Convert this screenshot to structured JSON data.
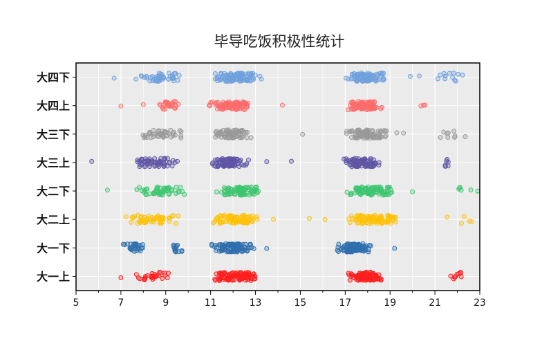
{
  "chart_data": {
    "type": "scatter",
    "title": "毕导吃饭积极性统计",
    "xlabel": "",
    "ylabel": "",
    "xlim": [
      5,
      23
    ],
    "x_ticks": [
      5,
      7,
      9,
      11,
      13,
      15,
      17,
      19,
      21,
      23
    ],
    "grid": true,
    "legend": "none",
    "categories": [
      "大一上",
      "大一下",
      "大二上",
      "大二下",
      "大三上",
      "大三下",
      "大四上",
      "大四下"
    ],
    "series": [
      {
        "category": "大一上",
        "color": "#ff1f1f",
        "clusters": [
          {
            "lo": 7.4,
            "hi": 9.4,
            "n": 28
          },
          {
            "lo": 11.1,
            "hi": 13.2,
            "n": 110
          },
          {
            "lo": 17.0,
            "hi": 18.7,
            "n": 95
          },
          {
            "lo": 21.7,
            "hi": 22.5,
            "n": 9
          }
        ]
      },
      {
        "category": "大一下",
        "color": "#2f6fad",
        "clusters": [
          {
            "lo": 7.1,
            "hi": 8.2,
            "n": 28
          },
          {
            "lo": 9.2,
            "hi": 9.8,
            "n": 14
          },
          {
            "lo": 10.9,
            "hi": 13.0,
            "n": 100
          },
          {
            "lo": 16.5,
            "hi": 18.3,
            "n": 90
          }
        ]
      },
      {
        "category": "大二上",
        "color": "#ffc107",
        "clusters": [
          {
            "lo": 7.2,
            "hi": 9.8,
            "n": 52
          },
          {
            "lo": 11.0,
            "hi": 13.2,
            "n": 90
          },
          {
            "lo": 17.0,
            "hi": 19.5,
            "n": 90
          },
          {
            "lo": 21.5,
            "hi": 22.8,
            "n": 5
          }
        ]
      },
      {
        "category": "大二下",
        "color": "#3dc56f",
        "clusters": [
          {
            "lo": 7.6,
            "hi": 10.0,
            "n": 50
          },
          {
            "lo": 11.1,
            "hi": 13.3,
            "n": 85
          },
          {
            "lo": 16.8,
            "hi": 19.2,
            "n": 95
          },
          {
            "lo": 22.0,
            "hi": 22.3,
            "n": 4
          }
        ]
      },
      {
        "category": "大三上",
        "color": "#5f56a5",
        "clusters": [
          {
            "lo": 7.2,
            "hi": 9.8,
            "n": 58
          },
          {
            "lo": 10.9,
            "hi": 12.8,
            "n": 85
          },
          {
            "lo": 16.8,
            "hi": 18.7,
            "n": 88
          },
          {
            "lo": 20.8,
            "hi": 22.2,
            "n": 6
          }
        ]
      },
      {
        "category": "大三下",
        "color": "#999999",
        "clusters": [
          {
            "lo": 7.6,
            "hi": 9.9,
            "n": 42
          },
          {
            "lo": 11.1,
            "hi": 13.0,
            "n": 75
          },
          {
            "lo": 17.0,
            "hi": 19.0,
            "n": 88
          },
          {
            "lo": 21.0,
            "hi": 22.4,
            "n": 9
          }
        ]
      },
      {
        "category": "大四上",
        "color": "#ff6b6b",
        "clusters": [
          {
            "lo": 8.6,
            "hi": 9.6,
            "n": 26
          },
          {
            "lo": 10.9,
            "hi": 13.0,
            "n": 90
          },
          {
            "lo": 17.0,
            "hi": 18.7,
            "n": 92
          },
          {
            "lo": 20.0,
            "hi": 20.9,
            "n": 3
          }
        ]
      },
      {
        "category": "大四下",
        "color": "#6fa0dd",
        "clusters": [
          {
            "lo": 7.6,
            "hi": 9.9,
            "n": 46
          },
          {
            "lo": 11.0,
            "hi": 13.4,
            "n": 95
          },
          {
            "lo": 17.0,
            "hi": 18.9,
            "n": 90
          },
          {
            "lo": 21.0,
            "hi": 22.6,
            "n": 12
          }
        ]
      }
    ],
    "outliers": [
      {
        "category": "大一上",
        "x": [
          7.0
        ]
      },
      {
        "category": "大一下",
        "x": [
          13.5,
          19.2
        ]
      },
      {
        "category": "大二上",
        "x": [
          13.8,
          15.4,
          16.1
        ]
      },
      {
        "category": "大二下",
        "x": [
          6.4,
          20.0,
          22.6,
          22.9
        ]
      },
      {
        "category": "大三上",
        "x": [
          5.7,
          13.5,
          14.6
        ]
      },
      {
        "category": "大三下",
        "x": [
          15.1,
          19.3,
          19.6
        ]
      },
      {
        "category": "大四上",
        "x": [
          7.0,
          8.0,
          14.2
        ]
      },
      {
        "category": "大四下",
        "x": [
          6.7,
          19.9,
          20.3
        ]
      }
    ]
  }
}
